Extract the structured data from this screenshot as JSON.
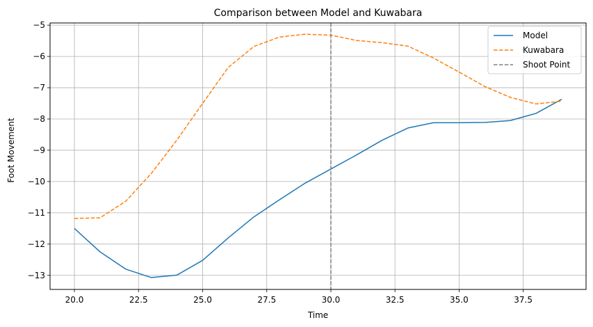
{
  "chart_data": {
    "type": "line",
    "title": "Comparison between Model and Kuwabara",
    "xlabel": "Time",
    "ylabel": "Foot Movement",
    "xlim": [
      19.05,
      39.95
    ],
    "ylim": [
      -13.45,
      -4.93
    ],
    "xticks": [
      20.0,
      22.5,
      25.0,
      27.5,
      30.0,
      32.5,
      35.0,
      37.5
    ],
    "xtick_labels": [
      "20.0",
      "22.5",
      "25.0",
      "27.5",
      "30.0",
      "32.5",
      "35.0",
      "37.5"
    ],
    "yticks": [
      -13,
      -12,
      -11,
      -10,
      -9,
      -8,
      -7,
      -6,
      -5
    ],
    "ytick_labels": [
      "−13",
      "−12",
      "−11",
      "−10",
      "−9",
      "−8",
      "−7",
      "−6",
      "−5"
    ],
    "grid": true,
    "legend_position": "top-right",
    "x": [
      20,
      21,
      22,
      23,
      24,
      25,
      26,
      27,
      28,
      29,
      30,
      31,
      32,
      33,
      34,
      35,
      36,
      37,
      38,
      39
    ],
    "series": [
      {
        "name": "Model",
        "style": "solid",
        "color": "#1f77b4",
        "values": [
          -11.5,
          -12.25,
          -12.8,
          -13.07,
          -12.99,
          -12.52,
          -11.8,
          -11.13,
          -10.58,
          -10.05,
          -9.6,
          -9.15,
          -8.68,
          -8.29,
          -8.12,
          -8.12,
          -8.11,
          -8.05,
          -7.82,
          -7.37
        ]
      },
      {
        "name": "Kuwabara",
        "style": "dashed",
        "color": "#ff7f0e",
        "values": [
          -11.18,
          -11.16,
          -10.63,
          -9.74,
          -8.67,
          -7.5,
          -6.35,
          -5.68,
          -5.38,
          -5.29,
          -5.32,
          -5.49,
          -5.56,
          -5.67,
          -6.05,
          -6.5,
          -6.96,
          -7.31,
          -7.52,
          -7.43
        ]
      }
    ],
    "vline": {
      "name": "Shoot Point",
      "x": 30,
      "style": "dashed",
      "color": "#808080"
    }
  }
}
